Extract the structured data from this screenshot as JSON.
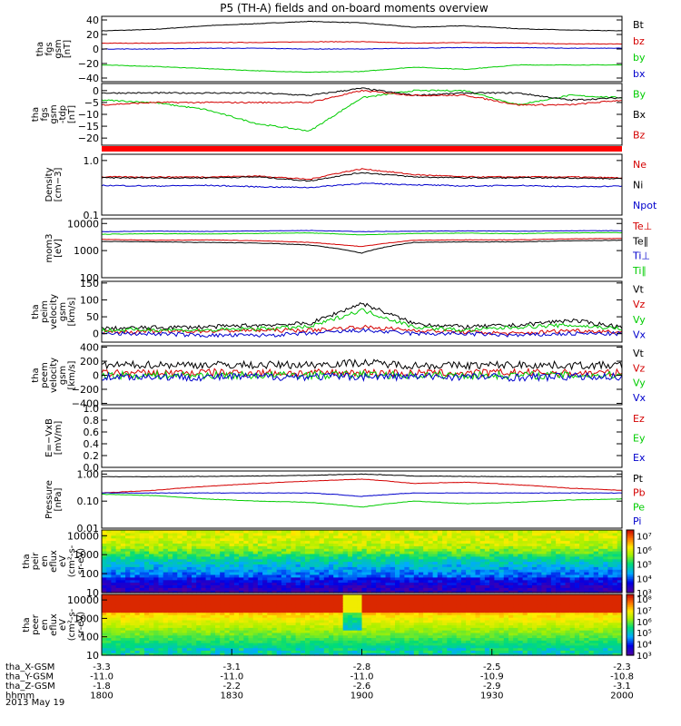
{
  "title": "P5 (TH-A) fields and on-board moments overview",
  "colors": {
    "black": "#000000",
    "red": "#d40000",
    "green": "#00cc00",
    "blue": "#0000cc",
    "axis": "#000000",
    "flag": "#ff0000"
  },
  "chart_data": {
    "type": "line",
    "time_axis": {
      "range": [
        "18:00",
        "20:00"
      ],
      "tick_rows": [
        {
          "label": "tha_X-GSM",
          "values": [
            "-3.3",
            "-3.1",
            "-2.8",
            "-2.5",
            "-2.3"
          ]
        },
        {
          "label": "tha_Y-GSM",
          "values": [
            "-11.0",
            "-11.0",
            "-11.0",
            "-10.9",
            "-10.8"
          ]
        },
        {
          "label": "tha_Z-GSM",
          "values": [
            "-1.8",
            "-2.2",
            "-2.6",
            "-2.9",
            "-3.1"
          ]
        },
        {
          "label": "hhmm",
          "values": [
            "1800",
            "1830",
            "1900",
            "1930",
            "2000"
          ]
        }
      ],
      "date": "2013 May 19"
    },
    "panels": [
      {
        "id": "fgs-gsm",
        "ylabel": [
          "tha",
          "fgs",
          "gsm",
          "[nT]"
        ],
        "ylim": [
          -45,
          45
        ],
        "yticks": [
          "40",
          "20",
          "0",
          "−20",
          "−40"
        ],
        "ytick_values": [
          40,
          20,
          0,
          -20,
          -40
        ],
        "scale": "linear",
        "series": [
          {
            "name": "Bt",
            "color": "black",
            "base": [
              25,
              27,
              32,
              35,
              38,
              36,
              30,
              32,
              28,
              26,
              25
            ]
          },
          {
            "name": "bz",
            "color": "red",
            "base": [
              8,
              8,
              9,
              9,
              10,
              10,
              8,
              9,
              8,
              7,
              7
            ]
          },
          {
            "name": "by",
            "color": "green",
            "base": [
              -22,
              -24,
              -27,
              -30,
              -32,
              -31,
              -25,
              -28,
              -22,
              -22,
              -22
            ]
          },
          {
            "name": "bx",
            "color": "blue",
            "base": [
              0,
              0,
              1,
              1,
              0,
              0,
              1,
              2,
              2,
              1,
              1
            ]
          }
        ]
      },
      {
        "id": "fgs-gsm-tdp",
        "ylabel": [
          "tha",
          "fgs",
          "gsm",
          "-tdp",
          "[nT]"
        ],
        "ylim": [
          -23,
          3
        ],
        "yticks": [
          "0",
          "−5",
          "−10",
          "−15",
          "−20"
        ],
        "ytick_values": [
          0,
          -5,
          -10,
          -15,
          -20
        ],
        "scale": "linear",
        "series": [
          {
            "name": "By",
            "color": "green",
            "base": [
              -4,
              -5,
              -8,
              -14,
              -17,
              -3,
              0,
              0,
              -6,
              -2,
              -3
            ]
          },
          {
            "name": "Bx",
            "color": "black",
            "base": [
              -1,
              -1,
              -1,
              -1,
              -2,
              1,
              -2,
              -1,
              -1,
              -4,
              -3
            ]
          },
          {
            "name": "Bz",
            "color": "red",
            "base": [
              -6,
              -5,
              -5,
              -5,
              -5,
              0,
              -2,
              -2,
              -6,
              -6,
              -4
            ]
          }
        ]
      },
      {
        "id": "density",
        "ylabel": [
          "Density",
          "[cm−3]"
        ],
        "ylim": [
          0.1,
          1.3
        ],
        "yticks": [
          "1.0",
          "0.1"
        ],
        "ytick_values": [
          1.0,
          0.1
        ],
        "scale": "log",
        "series": [
          {
            "name": "Ne",
            "color": "red",
            "base": [
              0.5,
              0.5,
              0.5,
              0.52,
              0.45,
              0.7,
              0.55,
              0.5,
              0.5,
              0.5,
              0.48
            ]
          },
          {
            "name": "Ni",
            "color": "black",
            "base": [
              0.48,
              0.48,
              0.48,
              0.5,
              0.42,
              0.6,
              0.5,
              0.48,
              0.48,
              0.48,
              0.46
            ]
          },
          {
            "name": "Npot",
            "color": "blue",
            "base": [
              0.35,
              0.34,
              0.35,
              0.33,
              0.32,
              0.38,
              0.36,
              0.34,
              0.35,
              0.33,
              0.34
            ]
          }
        ]
      },
      {
        "id": "temperature",
        "ylabel": [
          "mom3",
          "[eV]"
        ],
        "ylim": [
          100,
          15000
        ],
        "yticks": [
          "10000",
          "1000",
          "100"
        ],
        "ytick_values": [
          10000,
          1000,
          100
        ],
        "scale": "log",
        "series": [
          {
            "name": "Te⊥",
            "color": "red",
            "base": [
              2600,
              2400,
              2500,
              2300,
              2000,
              1400,
              2400,
              2500,
              2500,
              2700,
              2800
            ]
          },
          {
            "name": "Te∥",
            "color": "black",
            "base": [
              2200,
              2100,
              2000,
              1900,
              1600,
              800,
              2000,
              2100,
              2100,
              2300,
              2400
            ]
          },
          {
            "name": "Ti⊥",
            "color": "blue",
            "base": [
              5000,
              5200,
              5100,
              5300,
              5500,
              5000,
              5200,
              5300,
              5200,
              5400,
              5400
            ]
          },
          {
            "name": "Ti∥",
            "color": "green",
            "base": [
              4000,
              4200,
              4100,
              4300,
              4500,
              3800,
              4300,
              4400,
              4200,
              4500,
              4600
            ]
          }
        ]
      },
      {
        "id": "peim-velocity",
        "ylabel": [
          "tha",
          "peim",
          "velocity",
          "gsm",
          "[km/s]"
        ],
        "ylim": [
          -25,
          155
        ],
        "yticks": [
          "150",
          "100",
          "50",
          "0"
        ],
        "ytick_values": [
          150,
          100,
          50,
          0
        ],
        "scale": "linear",
        "series": [
          {
            "name": "Vt",
            "color": "black",
            "base": [
              15,
              18,
              20,
              25,
              30,
              90,
              30,
              20,
              25,
              40,
              20
            ]
          },
          {
            "name": "Vz",
            "color": "red",
            "base": [
              5,
              6,
              8,
              10,
              10,
              20,
              10,
              5,
              0,
              10,
              5
            ]
          },
          {
            "name": "Vy",
            "color": "green",
            "base": [
              10,
              12,
              10,
              15,
              20,
              70,
              20,
              10,
              20,
              25,
              15
            ]
          },
          {
            "name": "Vx",
            "color": "blue",
            "base": [
              0,
              0,
              -5,
              -5,
              0,
              10,
              0,
              0,
              -5,
              0,
              0
            ]
          }
        ]
      },
      {
        "id": "peem-velocity",
        "ylabel": [
          "tha",
          "peem",
          "velocity",
          "gsm",
          "[km/s]"
        ],
        "ylim": [
          -420,
          420
        ],
        "yticks": [
          "400",
          "200",
          "0",
          "−200",
          "−400"
        ],
        "ytick_values": [
          400,
          200,
          0,
          -200,
          -400
        ],
        "scale": "linear",
        "series": [
          {
            "name": "Vt",
            "color": "black",
            "base": [
              140,
              150,
              150,
              145,
              150,
              180,
              140,
              140,
              150,
              140,
              140
            ]
          },
          {
            "name": "Vz",
            "color": "red",
            "base": [
              30,
              30,
              40,
              35,
              30,
              40,
              30,
              30,
              40,
              30,
              30
            ]
          },
          {
            "name": "Vy",
            "color": "green",
            "base": [
              0,
              0,
              0,
              0,
              0,
              10,
              0,
              0,
              0,
              0,
              0
            ]
          },
          {
            "name": "Vx",
            "color": "blue",
            "base": [
              -20,
              -20,
              -30,
              -20,
              -20,
              -20,
              -20,
              -20,
              -30,
              -20,
              -20
            ]
          }
        ]
      },
      {
        "id": "efield",
        "ylabel": [
          "E=−VxB",
          "[mV/m]"
        ],
        "ylim": [
          0,
          1
        ],
        "yticks": [
          "1.0",
          "0.8",
          "0.6",
          "0.4",
          "0.2",
          "0.0"
        ],
        "ytick_values": [
          1,
          0.8,
          0.6,
          0.4,
          0.2,
          0
        ],
        "scale": "linear",
        "series": [
          {
            "name": "Ez",
            "color": "red",
            "base": []
          },
          {
            "name": "Ey",
            "color": "green",
            "base": []
          },
          {
            "name": "Ex",
            "color": "blue",
            "base": []
          }
        ]
      },
      {
        "id": "pressure",
        "ylabel": [
          "Pressure",
          "[nPa]"
        ],
        "ylim": [
          0.01,
          1.3
        ],
        "yticks": [
          "1.00",
          "0.10",
          "0.01"
        ],
        "ytick_values": [
          1,
          0.1,
          0.01
        ],
        "scale": "log",
        "series": [
          {
            "name": "Pt",
            "color": "black",
            "base": [
              0.8,
              0.8,
              0.82,
              0.85,
              0.9,
              1.0,
              0.85,
              0.82,
              0.8,
              0.8,
              0.8
            ]
          },
          {
            "name": "Pb",
            "color": "red",
            "base": [
              0.2,
              0.25,
              0.35,
              0.45,
              0.55,
              0.65,
              0.45,
              0.5,
              0.4,
              0.3,
              0.25
            ]
          },
          {
            "name": "Pe",
            "color": "green",
            "base": [
              0.18,
              0.16,
              0.12,
              0.1,
              0.09,
              0.06,
              0.1,
              0.08,
              0.09,
              0.11,
              0.12
            ]
          },
          {
            "name": "Pi",
            "color": "blue",
            "base": [
              0.2,
              0.2,
              0.2,
              0.2,
              0.2,
              0.15,
              0.2,
              0.2,
              0.2,
              0.2,
              0.2
            ]
          }
        ]
      }
    ],
    "spectrograms": [
      {
        "id": "peir",
        "ylabel": [
          "tha",
          "peir",
          "en",
          "eflux",
          "eV",
          "(cm²-s-",
          "sr-eV)"
        ],
        "ylim": [
          10,
          20000
        ],
        "yticks": [
          "10000",
          "1000",
          "100",
          "10"
        ],
        "ytick_values": [
          10000,
          1000,
          100,
          10
        ],
        "colorbar": {
          "ticks": [
            "10⁷",
            "10⁶",
            "10⁵",
            "10⁴",
            "10³"
          ],
          "tick_exponents": [
            7,
            6,
            5,
            4,
            3
          ],
          "range": [
            3,
            7.4
          ]
        }
      },
      {
        "id": "peer",
        "ylabel": [
          "tha",
          "peer",
          "en",
          "eflux",
          "eV",
          "(cm²-s-",
          "sr-eV)"
        ],
        "ylim": [
          10,
          20000
        ],
        "yticks": [
          "10000",
          "1000",
          "100",
          "10"
        ],
        "ytick_values": [
          10000,
          1000,
          100,
          10
        ],
        "colorbar": {
          "ticks": [
            "10⁸",
            "10⁷",
            "10⁶",
            "10⁵",
            "10⁴",
            "10³"
          ],
          "tick_exponents": [
            8,
            7,
            6,
            5,
            4,
            3
          ],
          "range": [
            3,
            8.4
          ]
        }
      }
    ]
  }
}
